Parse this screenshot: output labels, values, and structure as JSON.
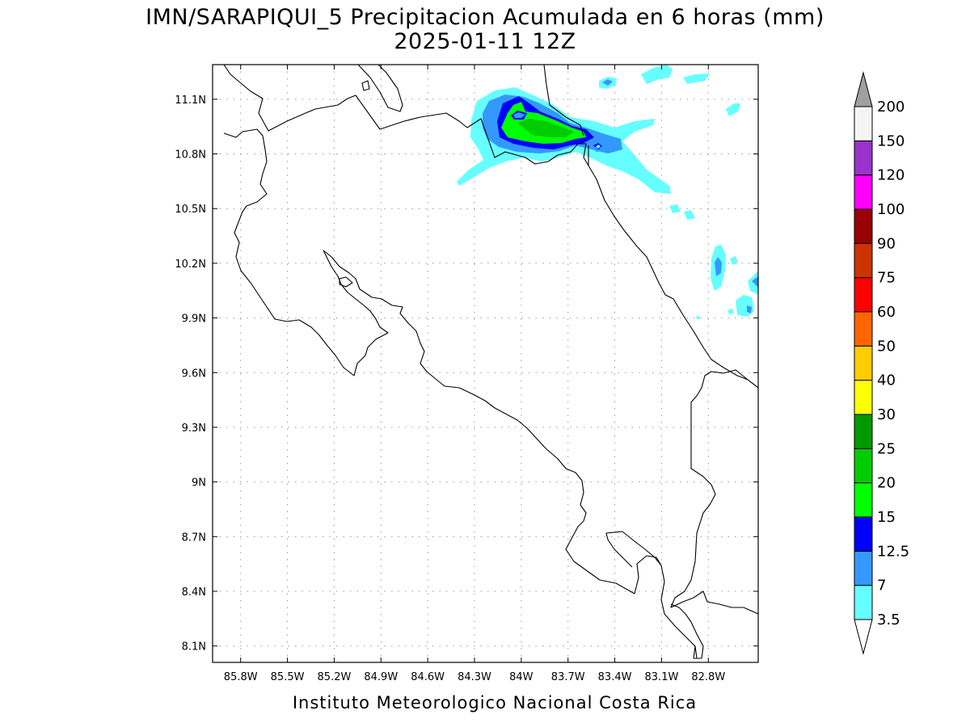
{
  "header": {
    "title": "IMN/SARAPIQUI_5 Precipitacion Acumulada en 6 horas (mm)",
    "subtitle": "2025-01-11 12Z"
  },
  "footer": {
    "credit": "Instituto Meteorologico Nacional Costa Rica"
  },
  "map": {
    "lon_range": [
      -85.98,
      -82.48
    ],
    "lat_range": [
      8.01,
      11.29
    ],
    "lon_ticks": [
      -85.8,
      -85.5,
      -85.2,
      -84.9,
      -84.6,
      -84.3,
      -84.0,
      -83.7,
      -83.4,
      -83.1,
      -82.8
    ],
    "lon_tick_labels": [
      "85.8W",
      "85.5W",
      "85.2W",
      "84.9W",
      "84.6W",
      "84.3W",
      "84W",
      "83.7W",
      "83.4W",
      "83.1W",
      "82.8W"
    ],
    "lat_ticks": [
      11.1,
      10.8,
      10.5,
      10.2,
      9.9,
      9.6,
      9.3,
      9.0,
      8.7,
      8.4,
      8.1
    ],
    "lat_tick_labels": [
      "11.1N",
      "10.8N",
      "10.5N",
      "10.2N",
      "9.9N",
      "9.6N",
      "9.3N",
      "9N",
      "8.7N",
      "8.4N",
      "8.1N"
    ]
  },
  "colorbar": {
    "levels": [
      "3.5",
      "7",
      "12.5",
      "15",
      "20",
      "25",
      "30",
      "40",
      "50",
      "60",
      "75",
      "90",
      "100",
      "120",
      "150",
      "200"
    ],
    "colors": [
      "#66ffff",
      "#3399ff",
      "#0000ff",
      "#00ff00",
      "#00cc00",
      "#009900",
      "#ffff00",
      "#ffcc00",
      "#ff6600",
      "#ff0000",
      "#cc3300",
      "#990000",
      "#ff00ff",
      "#9933cc",
      "#f5f5f5"
    ],
    "upper_extend_color": "#a0a0a0",
    "lower_extend_color": "#ffffff"
  }
}
